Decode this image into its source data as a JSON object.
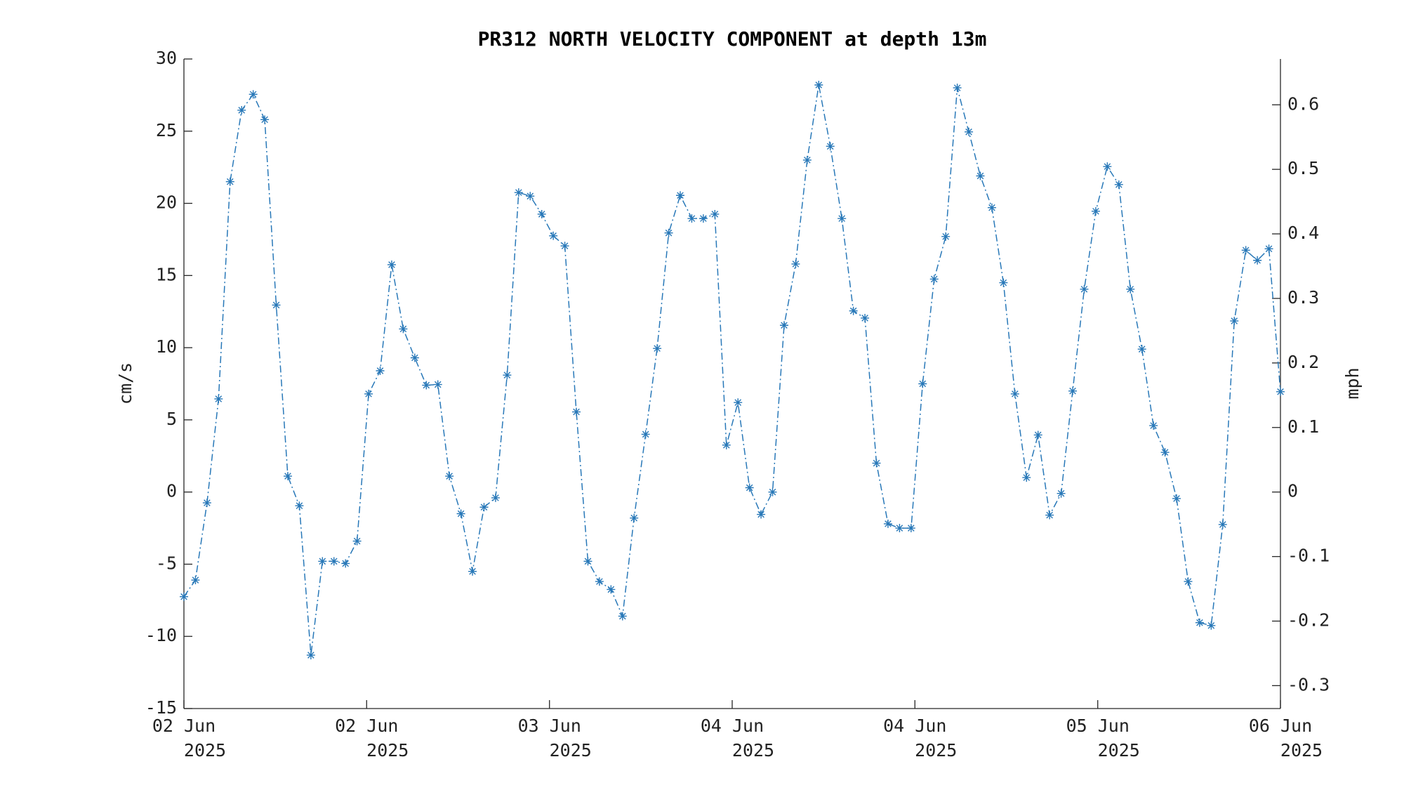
{
  "chart_data": {
    "type": "line",
    "title": "PR312 NORTH VELOCITY COMPONENT at depth 13m",
    "ylabel": "cm/s",
    "y2label": "mph",
    "color": "#2878b8",
    "marker": "asterisk",
    "line_style": "dashdot",
    "xlim": [
      0,
      95
    ],
    "xticks": [
      {
        "value": 0,
        "label": [
          "02 Jun",
          "2025"
        ]
      },
      {
        "value": 15.83,
        "label": [
          "02 Jun",
          "2025"
        ]
      },
      {
        "value": 31.67,
        "label": [
          "03 Jun",
          "2025"
        ]
      },
      {
        "value": 47.5,
        "label": [
          "04 Jun",
          "2025"
        ]
      },
      {
        "value": 63.33,
        "label": [
          "04 Jun",
          "2025"
        ]
      },
      {
        "value": 79.17,
        "label": [
          "05 Jun",
          "2025"
        ]
      },
      {
        "value": 95,
        "label": [
          "06 Jun",
          "2025"
        ]
      }
    ],
    "ylim": [
      -15,
      30
    ],
    "yticks": [
      -15,
      -10,
      -5,
      0,
      5,
      10,
      15,
      20,
      25,
      30
    ],
    "y2lim": [
      -0.3355,
      0.671
    ],
    "y2ticks": [
      -0.3,
      -0.2,
      -0.1,
      0,
      0.1,
      0.2,
      0.3,
      0.4,
      0.5,
      0.6
    ],
    "series": [
      {
        "name": "north velocity",
        "color": "#2878b8",
        "values": [
          -7.25,
          -6.1,
          -0.75,
          6.45,
          21.5,
          26.45,
          27.55,
          25.8,
          12.95,
          1.1,
          -0.95,
          -11.3,
          -4.8,
          -4.8,
          -4.95,
          -3.4,
          6.8,
          8.4,
          15.75,
          11.3,
          9.3,
          7.4,
          7.45,
          1.1,
          -1.5,
          -5.5,
          -1.05,
          -0.4,
          8.1,
          20.75,
          20.5,
          19.25,
          17.75,
          17.05,
          5.55,
          -4.8,
          -6.2,
          -6.75,
          -8.6,
          -1.8,
          4.0,
          9.95,
          17.95,
          20.55,
          18.95,
          18.95,
          19.25,
          3.25,
          6.2,
          0.3,
          -1.55,
          0,
          11.55,
          15.8,
          23,
          28.2,
          23.95,
          18.95,
          12.55,
          12.05,
          2.0,
          -2.2,
          -2.5,
          -2.5,
          7.5,
          14.75,
          17.7,
          28,
          24.95,
          21.9,
          19.7,
          14.5,
          6.8,
          1.0,
          3.95,
          -1.6,
          -0.1,
          7.0,
          14.05,
          19.45,
          22.55,
          21.3,
          14.05,
          9.9,
          4.6,
          2.75,
          -0.45,
          -6.2,
          -9.05,
          -9.25,
          -2.25,
          11.85,
          16.75,
          16.05,
          16.85,
          6.95
        ]
      }
    ]
  }
}
